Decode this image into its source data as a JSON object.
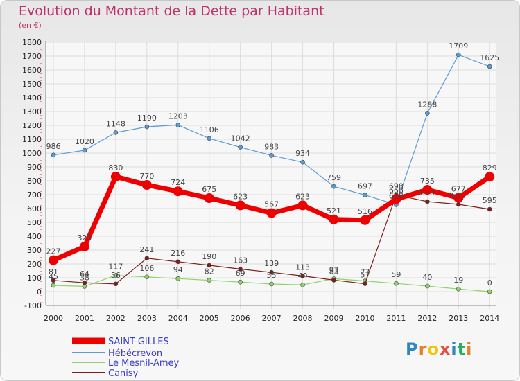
{
  "title": "Evolution du Montant de la Dette par Habitant",
  "unit": "(en €)",
  "logo": {
    "text": "Proxiti",
    "letters": [
      "P",
      "r",
      "o",
      "x",
      "i",
      "t",
      "i"
    ],
    "colors": [
      "#2e86c1",
      "#e67e22",
      "#f1c40f",
      "#e74c3c",
      "#2e86c1",
      "#27ae60",
      "#e67e22"
    ]
  },
  "chart_data": {
    "type": "line",
    "title": "Evolution du Montant de la Dette par Habitant",
    "ylabel": "(en €)",
    "x": [
      2000,
      2001,
      2002,
      2003,
      2004,
      2005,
      2006,
      2007,
      2008,
      2009,
      2010,
      2011,
      2012,
      2013,
      2014
    ],
    "ylim": [
      -100,
      1800
    ],
    "yticks": [
      -100,
      0,
      100,
      200,
      300,
      400,
      500,
      600,
      700,
      800,
      900,
      1000,
      1100,
      1200,
      1300,
      1400,
      1500,
      1600,
      1700,
      1800
    ],
    "grid": true,
    "legend_position": "bottom-left",
    "series": [
      {
        "name": "SAINT-GILLES",
        "color": "#ee0000",
        "values": [
          227,
          325,
          830,
          770,
          724,
          675,
          623,
          567,
          623,
          521,
          516,
          668,
          735,
          677,
          829
        ]
      },
      {
        "name": "Hébécrevon",
        "color": "#5b9bd5",
        "values": [
          986,
          1020,
          1148,
          1190,
          1203,
          1106,
          1042,
          983,
          934,
          759,
          697,
          628,
          1288,
          1709,
          1625
        ]
      },
      {
        "name": "Le Mesnil-Amey",
        "color": "#8fd36a",
        "values": [
          45,
          38,
          117,
          106,
          94,
          82,
          69,
          55,
          49,
          93,
          77,
          59,
          40,
          19,
          0
        ]
      },
      {
        "name": "Canisy",
        "color": "#7a1e1e",
        "values": [
          81,
          64,
          56,
          241,
          216,
          190,
          163,
          139,
          113,
          83,
          57,
          698,
          650,
          630,
          595
        ]
      }
    ]
  }
}
